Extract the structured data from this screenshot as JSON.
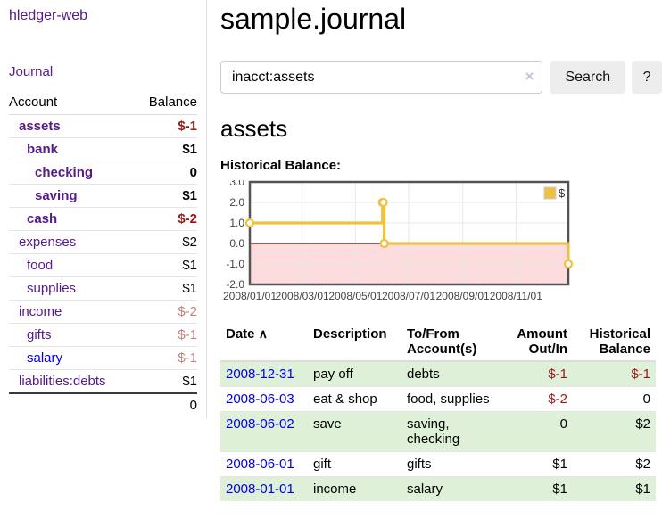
{
  "colors": {
    "link_visited": "#551a8b",
    "link_unvisited": "#0000ee",
    "date_link": "#0000e6",
    "negative_strong": "#9e1616",
    "negative_muted": "#c47f79",
    "row_stripe_green": "#dff0d8",
    "chart_line_gold": "#EDC240",
    "chart_negative_region": "#fcdcdc",
    "chart_zero_line": "#8b0000"
  },
  "sidebar": {
    "brand": "hledger-web",
    "journal_link": "Journal",
    "accounts": {
      "headers": {
        "account": "Account",
        "balance": "Balance"
      },
      "rows": [
        {
          "name": "assets",
          "balance": "$-1",
          "level": 1,
          "bold": true,
          "link": "visited",
          "bal_class": "neg-strong"
        },
        {
          "name": "bank",
          "balance": "$1",
          "level": 2,
          "bold": true,
          "link": "visited",
          "bal_class": ""
        },
        {
          "name": "checking",
          "balance": "0",
          "level": 3,
          "bold": true,
          "link": "visited",
          "bal_class": ""
        },
        {
          "name": "saving",
          "balance": "$1",
          "level": 3,
          "bold": true,
          "link": "visited",
          "bal_class": ""
        },
        {
          "name": "cash",
          "balance": "$-2",
          "level": 2,
          "bold": true,
          "link": "visited",
          "bal_class": "neg-strong"
        },
        {
          "name": "expenses",
          "balance": "$2",
          "level": 1,
          "bold": false,
          "link": "visited",
          "bal_class": ""
        },
        {
          "name": "food",
          "balance": "$1",
          "level": 2,
          "bold": false,
          "link": "visited",
          "bal_class": ""
        },
        {
          "name": "supplies",
          "balance": "$1",
          "level": 2,
          "bold": false,
          "link": "visited",
          "bal_class": ""
        },
        {
          "name": "income",
          "balance": "$-2",
          "level": 1,
          "bold": false,
          "link": "visited",
          "bal_class": "neg-muted"
        },
        {
          "name": "gifts",
          "balance": "$-1",
          "level": 2,
          "bold": false,
          "link": "visited",
          "bal_class": "neg-muted"
        },
        {
          "name": "salary",
          "balance": "$-1",
          "level": 2,
          "bold": false,
          "link": "unvisited",
          "bal_class": "neg-muted"
        },
        {
          "name": "liabilities:debts",
          "balance": "$1",
          "level": 1,
          "bold": false,
          "link": "visited",
          "bal_class": ""
        }
      ],
      "total": "0"
    }
  },
  "header": {
    "title": "sample.journal"
  },
  "search": {
    "value": "inacct:assets",
    "clear_icon": "×",
    "search_button": "Search",
    "help_button": "?"
  },
  "register": {
    "heading": "assets",
    "chart_label": "Historical Balance:"
  },
  "chart_data": {
    "type": "line",
    "step": true,
    "title": "Historical Balance:",
    "legend": "$",
    "legend_position": "top-right",
    "grid": true,
    "x_range": [
      "2008-01-01",
      "2008-12-31"
    ],
    "ylim": [
      -2,
      3
    ],
    "series": [
      {
        "name": "$",
        "color": "#EDC240",
        "points": [
          [
            "2008-01-01",
            1
          ],
          [
            "2008-06-01",
            2
          ],
          [
            "2008-06-02",
            2
          ],
          [
            "2008-06-03",
            0
          ],
          [
            "2008-12-31",
            -1
          ]
        ]
      }
    ],
    "y_ticks": [
      {
        "value": 3,
        "label": "3.0"
      },
      {
        "value": 2,
        "label": "2.0"
      },
      {
        "value": 1,
        "label": "1.0"
      },
      {
        "value": 0,
        "label": "0.0"
      },
      {
        "value": -1,
        "label": "-1.0"
      },
      {
        "value": -2,
        "label": "-2.0"
      }
    ],
    "x_ticks": [
      {
        "date": "2008-01-01",
        "label": "2008/01/01"
      },
      {
        "date": "2008-03-01",
        "label": "2008/03/01"
      },
      {
        "date": "2008-05-01",
        "label": "2008/05/01"
      },
      {
        "date": "2008-07-01",
        "label": "2008/07/01"
      },
      {
        "date": "2008-09-01",
        "label": "2008/09/01"
      },
      {
        "date": "2008-11-01",
        "label": "2008/11/01"
      }
    ],
    "negative_region_color": "#fcdcdc",
    "zero_line_color": "#8b0000",
    "grid_color": "#e9e9e9",
    "border_color": "#545454",
    "tick_label_color": "#444444"
  },
  "register_table": {
    "headers": {
      "date": "Date",
      "sort_icon": "∧",
      "description": "Description",
      "accounts": "To/From Account(s)",
      "amount": "Amount Out/In",
      "balance": "Historical Balance"
    },
    "rows": [
      {
        "date": "2008-12-31",
        "description": "pay off",
        "accounts": "debts",
        "amount": "$-1",
        "amount_neg": true,
        "balance": "$-1",
        "balance_neg": true
      },
      {
        "date": "2008-06-03",
        "description": "eat & shop",
        "accounts": "food, supplies",
        "amount": "$-2",
        "amount_neg": true,
        "balance": "0",
        "balance_neg": false
      },
      {
        "date": "2008-06-02",
        "description": "save",
        "accounts": "saving, checking",
        "amount": "0",
        "amount_neg": false,
        "balance": "$2",
        "balance_neg": false
      },
      {
        "date": "2008-06-01",
        "description": "gift",
        "accounts": "gifts",
        "amount": "$1",
        "amount_neg": false,
        "balance": "$2",
        "balance_neg": false
      },
      {
        "date": "2008-01-01",
        "description": "income",
        "accounts": "salary",
        "amount": "$1",
        "amount_neg": false,
        "balance": "$1",
        "balance_neg": false
      }
    ]
  }
}
